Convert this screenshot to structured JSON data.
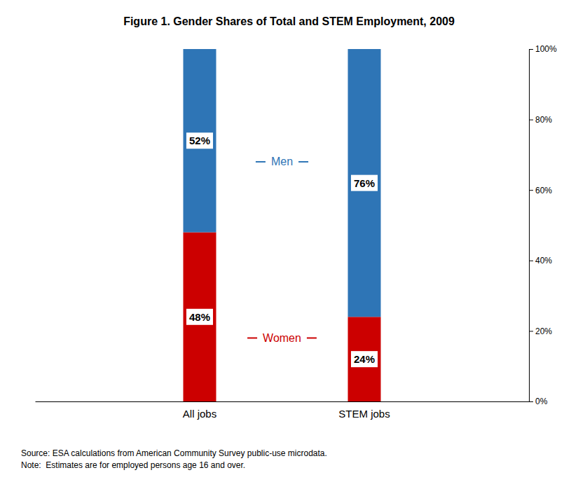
{
  "chart_data": {
    "type": "bar",
    "title": "Figure 1. Gender Shares of Total and STEM Employment, 2009",
    "categories": [
      "All jobs",
      "STEM jobs"
    ],
    "stacked": true,
    "data_labels": true,
    "grid": false,
    "series": [
      {
        "name": "Women",
        "color": "#CC0000",
        "values": [
          48,
          24
        ],
        "value_labels": [
          "48%",
          "24%"
        ]
      },
      {
        "name": "Men",
        "color": "#2E75B6",
        "values": [
          52,
          76
        ],
        "value_labels": [
          "52%",
          "76%"
        ]
      }
    ],
    "ylim": [
      0,
      100
    ],
    "yticks": [
      {
        "value": 0,
        "label": "0%"
      },
      {
        "value": 20,
        "label": "20%"
      },
      {
        "value": 40,
        "label": "40%"
      },
      {
        "value": 60,
        "label": "60%"
      },
      {
        "value": 80,
        "label": "80%"
      },
      {
        "value": 100,
        "label": "100%"
      }
    ],
    "annotations": [
      "Source: ESA calculations from American Community Survey public-use microdata.",
      "Note:  Estimates are for employed persons age 16 and over."
    ]
  }
}
